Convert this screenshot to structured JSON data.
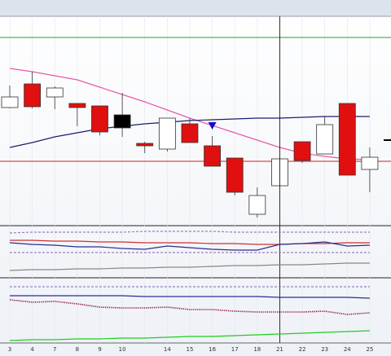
{
  "chart_data": [
    {
      "type": "candlestick",
      "categories": [
        "3",
        "4",
        "7",
        "8",
        "9",
        "10",
        null,
        "14",
        "15",
        "16",
        "17",
        "18",
        "21",
        "22",
        "23",
        "24",
        "25"
      ],
      "open": [
        143,
        172,
        156,
        148,
        145,
        134,
        99,
        92,
        123,
        96,
        81,
        12,
        47,
        101,
        86,
        148,
        67
      ],
      "high": [
        170,
        187,
        169,
        148,
        145,
        161,
        101,
        130,
        130,
        108,
        81,
        45,
        80,
        101,
        132,
        148,
        94
      ],
      "low": [
        142,
        142,
        141,
        120,
        109,
        107,
        87,
        89,
        100,
        71,
        35,
        8,
        47,
        75,
        86,
        60,
        39
      ],
      "close": [
        156,
        144,
        167,
        143,
        113,
        118,
        96,
        130,
        100,
        71,
        39,
        35,
        80,
        78,
        122,
        60,
        82
      ],
      "colors": [
        "#ffffff",
        "#e01010",
        "#ffffff",
        "#e01010",
        "#e01010",
        "#000000",
        "#e01010",
        "#ffffff",
        "#e01010",
        "#e01010",
        "#e01010",
        "#ffffff",
        "#ffffff",
        "#e01010",
        "#ffffff",
        "#e01010",
        "#ffffff"
      ],
      "series": [
        {
          "color": "#e85aa8",
          "style": "solid",
          "values": [
            191,
            187,
            182,
            177,
            168,
            159,
            150,
            140,
            130,
            121,
            112,
            103,
            94,
            87,
            83,
            80,
            79
          ]
        },
        {
          "color": "#1a1f6e",
          "style": "solid",
          "values": [
            94,
            100,
            107,
            112,
            117,
            120,
            123,
            125,
            127,
            128,
            129,
            130,
            130,
            131,
            132,
            132,
            132
          ]
        }
      ],
      "hlines": [
        {
          "value": 229,
          "color": "#2a9a2a"
        },
        {
          "value": 77,
          "color": "#d02020"
        }
      ],
      "markers": [
        {
          "index": 9,
          "value": 125,
          "color": "#1010c0"
        }
      ],
      "price_marker": 103,
      "crosshair_index": 12,
      "ylim": [
        0,
        255
      ]
    },
    {
      "type": "line",
      "series": [
        {
          "color": "#9b7fc0",
          "style": "dashed",
          "values": [
            54,
            55,
            55,
            55,
            55,
            55,
            56,
            56,
            56,
            56,
            55,
            55,
            55,
            55,
            55,
            55,
            55
          ]
        },
        {
          "color": "#9b7fc0",
          "style": "dashed",
          "values": [
            30,
            30,
            30,
            30,
            30,
            30,
            30,
            30,
            30,
            30,
            30,
            30,
            30,
            30,
            30,
            30,
            30
          ]
        },
        {
          "color": "#d03030",
          "style": "solid",
          "values": [
            45,
            45,
            44,
            44,
            43,
            43,
            42,
            42,
            42,
            41,
            41,
            40,
            40,
            41,
            41,
            42,
            42
          ]
        },
        {
          "color": "#2a2f8e",
          "style": "solid",
          "values": [
            42,
            40,
            39,
            37,
            37,
            35,
            34,
            38,
            36,
            34,
            33,
            33,
            40,
            41,
            43,
            38,
            39
          ]
        },
        {
          "color": "#888888",
          "style": "solid",
          "values": [
            8,
            9,
            9,
            10,
            10,
            11,
            11,
            12,
            12,
            13,
            14,
            14,
            15,
            15,
            16,
            17,
            17
          ]
        }
      ],
      "ylim": [
        0,
        62
      ]
    },
    {
      "type": "line",
      "series": [
        {
          "color": "#9b7fc0",
          "style": "dashed",
          "values": [
            68,
            68,
            68,
            68,
            68,
            68,
            68,
            68,
            68,
            68,
            68,
            68,
            68,
            68,
            68,
            68,
            68
          ]
        },
        {
          "color": "#2a2f8e",
          "style": "solid",
          "values": [
            57,
            57,
            57,
            57,
            57,
            57,
            56,
            56,
            56,
            56,
            56,
            56,
            55,
            55,
            55,
            55,
            54
          ]
        },
        {
          "color": "#8a1040",
          "style": "dotted",
          "values": [
            52,
            49,
            50,
            47,
            43,
            42,
            42,
            43,
            40,
            40,
            38,
            37,
            37,
            37,
            38,
            34,
            36
          ]
        },
        {
          "color": "#22cc22",
          "style": "solid",
          "values": [
            2,
            3,
            3,
            4,
            4,
            5,
            5,
            6,
            7,
            7,
            8,
            9,
            10,
            11,
            12,
            13,
            14
          ]
        }
      ],
      "ylim": [
        0,
        78
      ]
    }
  ]
}
